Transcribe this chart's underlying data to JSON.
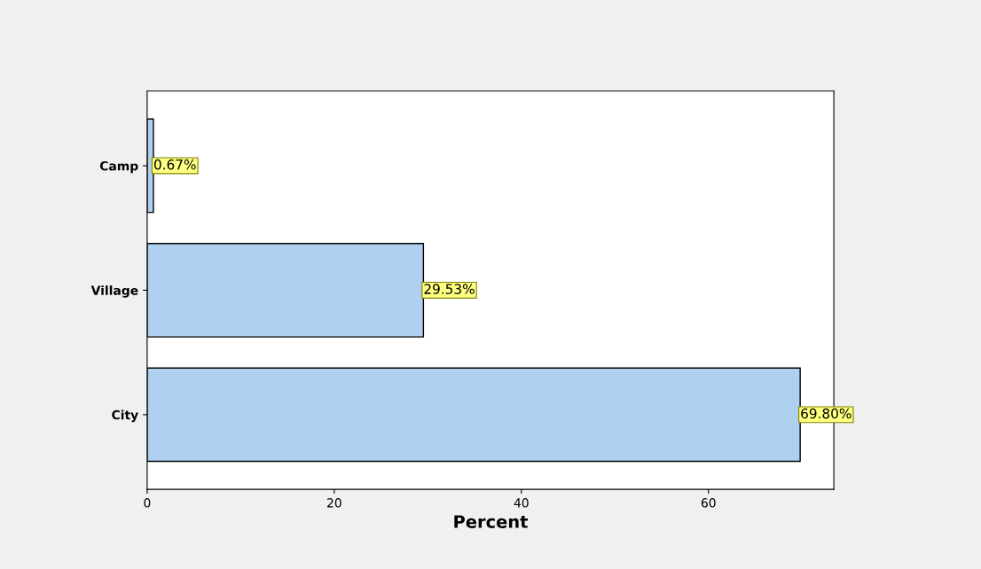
{
  "chart_data": {
    "type": "bar",
    "orientation": "horizontal",
    "xlabel": "Percent",
    "categories": [
      "Camp",
      "Village",
      "City"
    ],
    "values": [
      0.67,
      29.53,
      69.8
    ],
    "value_labels": [
      "0.67%",
      "29.53%",
      "69.80%"
    ],
    "color": "#afd0ee",
    "xlim": [
      0,
      73.4
    ],
    "xticks": [
      0,
      20,
      40,
      60
    ],
    "grid": false
  }
}
